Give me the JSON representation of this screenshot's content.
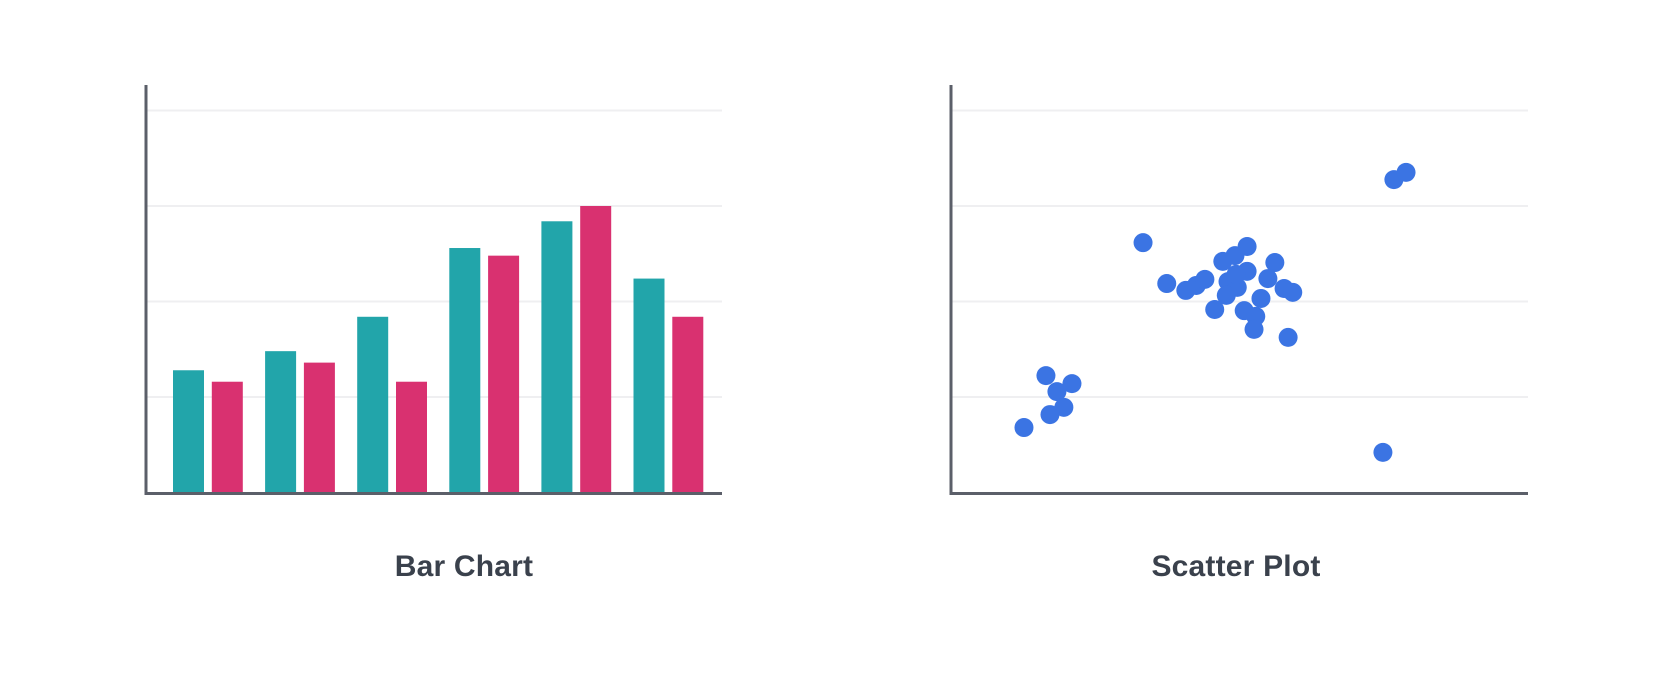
{
  "page": {
    "background": "#FFFFFF",
    "title_color": "#3A414C"
  },
  "chart_data": [
    {
      "type": "bar",
      "title": "Bar Chart",
      "series": [
        {
          "name": "teal",
          "color": "#22A5AA",
          "values": [
            32,
            37,
            46,
            64,
            71,
            56
          ]
        },
        {
          "name": "pink",
          "color": "#D93170",
          "values": [
            29,
            34,
            29,
            62,
            75,
            46
          ]
        }
      ],
      "ylim": [
        0,
        107
      ],
      "y_gridlines": [
        25,
        50,
        75,
        100
      ],
      "axis_color": "#5B5F69",
      "gridline_color": "#EFEFF1",
      "legend": "none",
      "axis_tick_labels": "none"
    },
    {
      "type": "scatter",
      "title": "Scatter Plot",
      "point_color": "#3B74E3",
      "points": [
        [
          33.4,
          65.4
        ],
        [
          37.5,
          54.7
        ],
        [
          40.8,
          52.9
        ],
        [
          42.6,
          54.2
        ],
        [
          44.1,
          55.8
        ],
        [
          47.2,
          60.5
        ],
        [
          48.1,
          55.2
        ],
        [
          49.7,
          53.7
        ],
        [
          47.8,
          51.6
        ],
        [
          45.8,
          47.9
        ],
        [
          51.4,
          64.4
        ],
        [
          49.3,
          62.0
        ],
        [
          56.2,
          60.2
        ],
        [
          51.4,
          57.9
        ],
        [
          49.5,
          57.1
        ],
        [
          55.0,
          56.0
        ],
        [
          57.8,
          53.4
        ],
        [
          59.3,
          52.4
        ],
        [
          53.8,
          50.8
        ],
        [
          50.9,
          47.6
        ],
        [
          52.9,
          46.1
        ],
        [
          52.6,
          42.7
        ],
        [
          58.5,
          40.6
        ],
        [
          16.6,
          30.6
        ],
        [
          21.1,
          28.5
        ],
        [
          18.5,
          26.4
        ],
        [
          19.7,
          22.3
        ],
        [
          17.3,
          20.4
        ],
        [
          12.8,
          17.0
        ],
        [
          76.8,
          81.9
        ],
        [
          78.9,
          83.8
        ],
        [
          74.9,
          10.5
        ]
      ],
      "xlim": [
        0,
        100
      ],
      "ylim": [
        0,
        107
      ],
      "y_gridlines": [
        25,
        50,
        75,
        100
      ],
      "axis_color": "#5B5F69",
      "gridline_color": "#EFEFF1",
      "legend": "none",
      "axis_tick_labels": "none"
    }
  ]
}
